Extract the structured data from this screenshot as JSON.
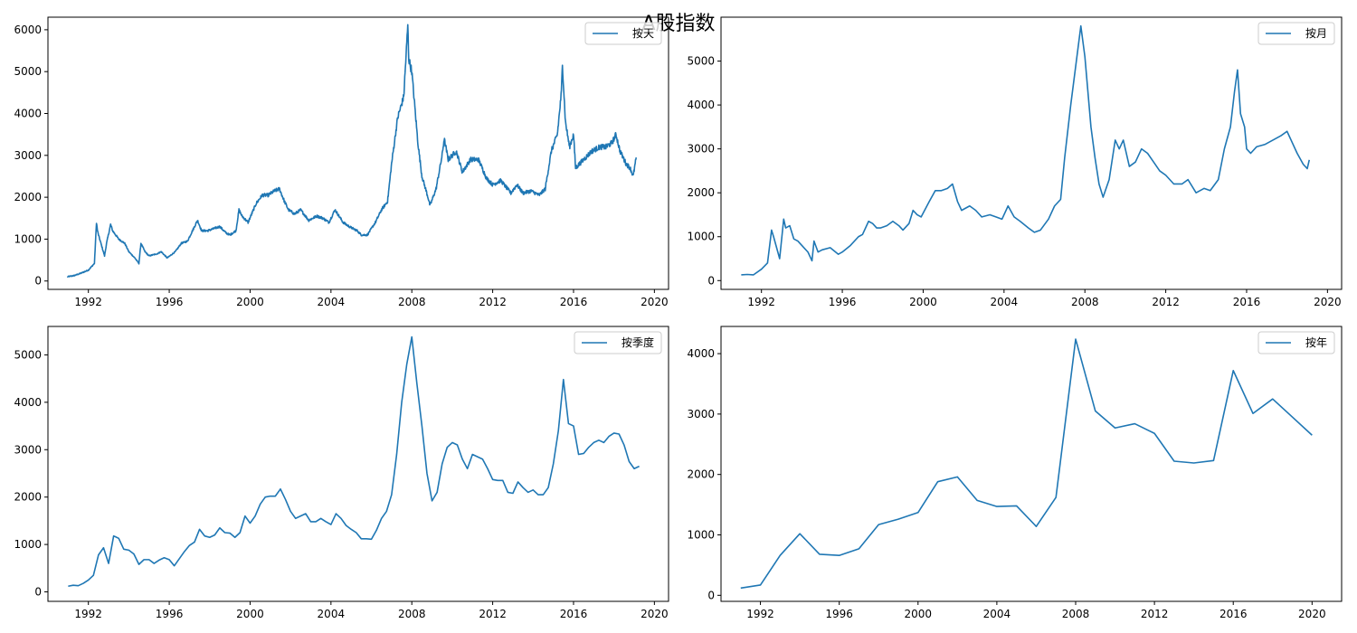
{
  "figure": {
    "suptitle": "A股指数",
    "line_color": "#1f77b4"
  },
  "chart_data": [
    {
      "type": "line",
      "legend": "按天",
      "legend_loc": "upper right",
      "xlim": [
        1990.0,
        2020.7
      ],
      "ylim": [
        -200,
        6300
      ],
      "xticks": [
        1992,
        1996,
        2000,
        2004,
        2008,
        2012,
        2016,
        2020
      ],
      "yticks": [
        0,
        1000,
        2000,
        3000,
        4000,
        5000,
        6000
      ],
      "noise": 40,
      "series": [
        {
          "x": [
            1990.96,
            1991.3,
            1991.6,
            1992.0,
            1992.3,
            1992.4,
            1992.45,
            1992.5,
            1992.8,
            1992.9,
            1993.1,
            1993.2,
            1993.5,
            1993.8,
            1994.0,
            1994.3,
            1994.5,
            1994.6,
            1994.8,
            1995.0,
            1995.4,
            1995.6,
            1995.9,
            1996.3,
            1996.6,
            1996.9,
            1997.2,
            1997.4,
            1997.6,
            1997.9,
            1998.2,
            1998.5,
            1998.8,
            1999.0,
            1999.3,
            1999.45,
            1999.6,
            1999.9,
            2000.3,
            2000.6,
            2000.9,
            2001.2,
            2001.45,
            2001.7,
            2001.9,
            2002.2,
            2002.5,
            2002.9,
            2003.3,
            2003.6,
            2003.9,
            2004.2,
            2004.6,
            2004.9,
            2005.3,
            2005.5,
            2005.8,
            2006.2,
            2006.5,
            2006.8,
            2007.0,
            2007.3,
            2007.6,
            2007.8,
            2007.85,
            2008.0,
            2008.3,
            2008.5,
            2008.8,
            2008.9,
            2009.2,
            2009.5,
            2009.6,
            2009.8,
            2010.2,
            2010.5,
            2010.9,
            2011.3,
            2011.7,
            2012.0,
            2012.4,
            2012.9,
            2013.2,
            2013.5,
            2013.9,
            2014.3,
            2014.6,
            2014.9,
            2015.2,
            2015.4,
            2015.45,
            2015.6,
            2015.8,
            2016.0,
            2016.1,
            2016.5,
            2016.9,
            2017.3,
            2017.6,
            2017.9,
            2018.1,
            2018.3,
            2018.6,
            2018.8,
            2018.95,
            2019.1
          ],
          "y": [
            100,
            130,
            180,
            260,
            420,
            1400,
            1200,
            1100,
            600,
            900,
            1350,
            1200,
            1000,
            900,
            700,
            550,
            420,
            900,
            700,
            600,
            650,
            700,
            550,
            700,
            900,
            950,
            1250,
            1450,
            1200,
            1200,
            1250,
            1300,
            1150,
            1100,
            1200,
            1700,
            1550,
            1400,
            1850,
            2050,
            2050,
            2150,
            2200,
            1900,
            1700,
            1600,
            1700,
            1450,
            1550,
            1500,
            1400,
            1700,
            1400,
            1300,
            1200,
            1100,
            1100,
            1400,
            1700,
            1900,
            2800,
            3900,
            4400,
            6100,
            5300,
            5000,
            3300,
            2500,
            2000,
            1800,
            2200,
            3000,
            3400,
            2900,
            3100,
            2600,
            2900,
            2900,
            2450,
            2300,
            2400,
            2100,
            2300,
            2100,
            2150,
            2050,
            2200,
            3100,
            3500,
            4500,
            5180,
            3800,
            3200,
            3500,
            2700,
            2900,
            3100,
            3200,
            3200,
            3300,
            3500,
            3100,
            2800,
            2700,
            2500,
            2950
          ]
        }
      ]
    },
    {
      "type": "line",
      "legend": "按月",
      "legend_loc": "upper right",
      "xlim": [
        1990.0,
        2020.7
      ],
      "ylim": [
        -200,
        6000
      ],
      "xticks": [
        1992,
        1996,
        2000,
        2004,
        2008,
        2012,
        2016,
        2020
      ],
      "yticks": [
        0,
        1000,
        2000,
        3000,
        4000,
        5000
      ],
      "noise": 0,
      "series": [
        {
          "x": [
            1991.0,
            1991.3,
            1991.6,
            1992.0,
            1992.3,
            1992.5,
            1992.6,
            1992.9,
            1993.1,
            1993.2,
            1993.4,
            1993.6,
            1993.8,
            1994.0,
            1994.3,
            1994.5,
            1994.6,
            1994.8,
            1995.0,
            1995.4,
            1995.8,
            1996.0,
            1996.4,
            1996.8,
            1997.0,
            1997.3,
            1997.5,
            1997.7,
            1997.9,
            1998.2,
            1998.5,
            1998.8,
            1999.0,
            1999.3,
            1999.5,
            1999.7,
            1999.9,
            2000.3,
            2000.6,
            2000.9,
            2001.2,
            2001.45,
            2001.7,
            2001.9,
            2002.3,
            2002.6,
            2002.9,
            2003.3,
            2003.6,
            2003.9,
            2004.2,
            2004.5,
            2004.8,
            2005.2,
            2005.5,
            2005.8,
            2006.2,
            2006.5,
            2006.8,
            2007.0,
            2007.3,
            2007.55,
            2007.8,
            2008.0,
            2008.3,
            2008.5,
            2008.7,
            2008.9,
            2009.2,
            2009.5,
            2009.7,
            2009.9,
            2010.2,
            2010.5,
            2010.8,
            2011.1,
            2011.4,
            2011.7,
            2012.0,
            2012.4,
            2012.8,
            2013.1,
            2013.5,
            2013.9,
            2014.2,
            2014.6,
            2014.9,
            2015.2,
            2015.4,
            2015.55,
            2015.7,
            2015.9,
            2016.0,
            2016.2,
            2016.5,
            2016.9,
            2017.3,
            2017.7,
            2018.0,
            2018.2,
            2018.5,
            2018.8,
            2019.0,
            2019.1
          ],
          "y": [
            130,
            140,
            130,
            260,
            400,
            1150,
            1000,
            500,
            1400,
            1200,
            1250,
            950,
            900,
            800,
            650,
            450,
            900,
            650,
            700,
            750,
            600,
            650,
            800,
            1000,
            1050,
            1350,
            1300,
            1200,
            1200,
            1250,
            1350,
            1250,
            1150,
            1300,
            1600,
            1500,
            1450,
            1800,
            2050,
            2050,
            2100,
            2200,
            1800,
            1600,
            1700,
            1600,
            1450,
            1500,
            1450,
            1400,
            1700,
            1450,
            1350,
            1200,
            1100,
            1150,
            1400,
            1700,
            1850,
            2800,
            4000,
            4900,
            5800,
            5100,
            3500,
            2800,
            2200,
            1900,
            2300,
            3200,
            3000,
            3200,
            2600,
            2700,
            3000,
            2900,
            2700,
            2500,
            2400,
            2200,
            2200,
            2300,
            2000,
            2100,
            2050,
            2300,
            3000,
            3500,
            4300,
            4800,
            3800,
            3500,
            3000,
            2900,
            3050,
            3100,
            3200,
            3300,
            3400,
            3200,
            2900,
            2650,
            2550,
            2750
          ]
        }
      ]
    },
    {
      "type": "line",
      "legend": "按季度",
      "legend_loc": "upper right",
      "xlim": [
        1990.0,
        2020.7
      ],
      "ylim": [
        -200,
        5600
      ],
      "xticks": [
        1992,
        1996,
        2000,
        2004,
        2008,
        2012,
        2016,
        2020
      ],
      "yticks": [
        0,
        1000,
        2000,
        3000,
        4000,
        5000
      ],
      "noise": 0,
      "series": [
        {
          "x": [
            1991.0,
            1991.25,
            1991.5,
            1991.75,
            1992.0,
            1992.25,
            1992.5,
            1992.75,
            1993.0,
            1993.25,
            1993.5,
            1993.75,
            1994.0,
            1994.25,
            1994.5,
            1994.75,
            1995.0,
            1995.25,
            1995.5,
            1995.75,
            1996.0,
            1996.25,
            1996.5,
            1996.75,
            1997.0,
            1997.25,
            1997.5,
            1997.75,
            1998.0,
            1998.25,
            1998.5,
            1998.75,
            1999.0,
            1999.25,
            1999.5,
            1999.75,
            2000.0,
            2000.25,
            2000.5,
            2000.75,
            2001.0,
            2001.25,
            2001.5,
            2001.75,
            2002.0,
            2002.25,
            2002.5,
            2002.75,
            2003.0,
            2003.25,
            2003.5,
            2003.75,
            2004.0,
            2004.25,
            2004.5,
            2004.75,
            2005.0,
            2005.25,
            2005.5,
            2005.75,
            2006.0,
            2006.25,
            2006.5,
            2006.75,
            2007.0,
            2007.25,
            2007.5,
            2007.75,
            2008.0,
            2008.25,
            2008.5,
            2008.75,
            2009.0,
            2009.25,
            2009.5,
            2009.75,
            2010.0,
            2010.25,
            2010.5,
            2010.75,
            2011.0,
            2011.25,
            2011.5,
            2011.75,
            2012.0,
            2012.25,
            2012.5,
            2012.75,
            2013.0,
            2013.25,
            2013.5,
            2013.75,
            2014.0,
            2014.25,
            2014.5,
            2014.75,
            2015.0,
            2015.25,
            2015.5,
            2015.75,
            2016.0,
            2016.25,
            2016.5,
            2016.75,
            2017.0,
            2017.25,
            2017.5,
            2017.75,
            2018.0,
            2018.25,
            2018.5,
            2018.75,
            2019.0,
            2019.25
          ],
          "y": [
            120,
            140,
            130,
            180,
            250,
            350,
            780,
            930,
            600,
            1180,
            1130,
            900,
            880,
            800,
            580,
            680,
            680,
            600,
            670,
            720,
            680,
            550,
            700,
            850,
            980,
            1050,
            1320,
            1180,
            1150,
            1200,
            1350,
            1250,
            1240,
            1150,
            1250,
            1600,
            1450,
            1600,
            1850,
            2000,
            2020,
            2020,
            2170,
            1950,
            1700,
            1550,
            1600,
            1650,
            1480,
            1480,
            1550,
            1480,
            1420,
            1650,
            1550,
            1400,
            1320,
            1250,
            1120,
            1120,
            1110,
            1300,
            1550,
            1700,
            2050,
            2900,
            4000,
            4800,
            5380,
            4400,
            3500,
            2500,
            1920,
            2100,
            2700,
            3050,
            3150,
            3100,
            2800,
            2600,
            2900,
            2850,
            2800,
            2600,
            2370,
            2350,
            2350,
            2100,
            2080,
            2320,
            2200,
            2100,
            2150,
            2050,
            2050,
            2200,
            2700,
            3400,
            4480,
            3550,
            3500,
            2900,
            2920,
            3050,
            3150,
            3200,
            3150,
            3280,
            3350,
            3330,
            3100,
            2750,
            2600,
            2650
          ]
        }
      ]
    },
    {
      "type": "line",
      "legend": "按年",
      "legend_loc": "upper right",
      "xlim": [
        1990.0,
        2021.5
      ],
      "ylim": [
        -100,
        4450
      ],
      "xticks": [
        1992,
        1996,
        2000,
        2004,
        2008,
        2012,
        2016,
        2020
      ],
      "yticks": [
        0,
        1000,
        2000,
        3000,
        4000
      ],
      "noise": 0,
      "series": [
        {
          "x": [
            1991,
            1992,
            1993,
            1994,
            1995,
            1996,
            1997,
            1998,
            1999,
            2000,
            2001,
            2002,
            2003,
            2004,
            2005,
            2006,
            2007,
            2008,
            2009,
            2010,
            2011,
            2012,
            2013,
            2014,
            2015,
            2016,
            2017,
            2018,
            2019,
            2020
          ],
          "y": [
            120,
            170,
            660,
            1020,
            680,
            660,
            770,
            1170,
            1260,
            1370,
            1880,
            1960,
            1570,
            1470,
            1480,
            1140,
            1620,
            4240,
            3050,
            2770,
            2840,
            2680,
            2220,
            2190,
            2230,
            3720,
            3010,
            3250,
            2950,
            2650
          ]
        }
      ]
    }
  ]
}
